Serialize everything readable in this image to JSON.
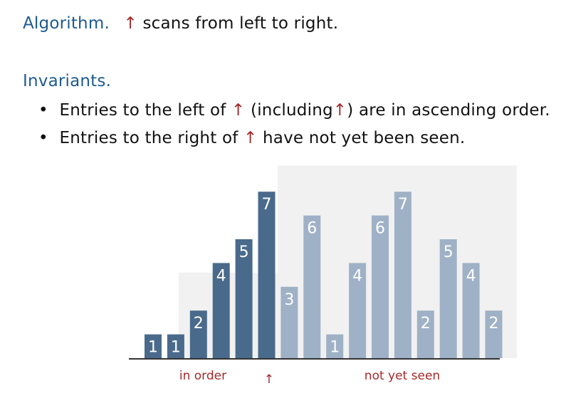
{
  "algorithm": {
    "heading": "Algorithm.",
    "arrow": "↑",
    "text": "scans from left to right."
  },
  "invariants": {
    "heading": "Invariants.",
    "bullets": [
      {
        "before": "Entries to the left of",
        "arrow1": "↑",
        "middle": "(including",
        "arrow2": "↑",
        "after": ") are in ascending order."
      },
      {
        "before": "Entries to the right of",
        "arrow1": "↑",
        "after": "have not yet been seen."
      }
    ]
  },
  "chart_data": {
    "type": "bar",
    "values": [
      1,
      1,
      2,
      4,
      5,
      7,
      3,
      6,
      1,
      4,
      6,
      7,
      2,
      5,
      4,
      2
    ],
    "labels": [
      "1",
      "1",
      "2",
      "4",
      "5",
      "7",
      "3",
      "6",
      "1",
      "4",
      "6",
      "7",
      "2",
      "5",
      "4",
      "2"
    ],
    "sorted_count": 6,
    "colors": {
      "sorted": "#4a6a8c",
      "unseen": "#9fb1c6",
      "shade": "#f1f1f1",
      "baseline": "#333333"
    }
  },
  "captions": {
    "left": "in order",
    "arrow": "↑",
    "right": "not yet seen"
  }
}
